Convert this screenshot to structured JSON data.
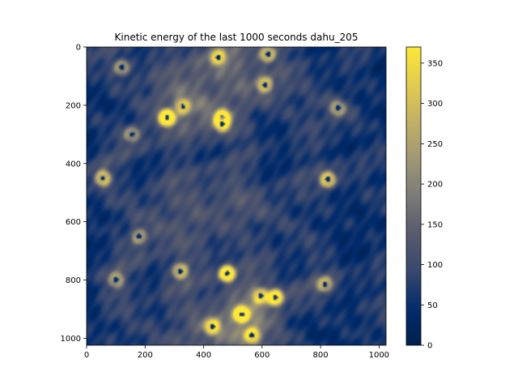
{
  "chart_data": {
    "type": "heatmap",
    "title": "Kinetic energy of the last 1000 seconds dahu_205",
    "xlabel": "",
    "ylabel": "",
    "xlim": [
      0,
      1024
    ],
    "ylim": [
      1024,
      0
    ],
    "x_ticks": [
      0,
      200,
      400,
      600,
      800,
      1000
    ],
    "y_ticks": [
      0,
      200,
      400,
      600,
      800,
      1000
    ],
    "colorbar": {
      "colormap": "cividis",
      "range": [
        0,
        370
      ],
      "ticks": [
        0,
        50,
        100,
        150,
        200,
        250,
        300,
        350
      ]
    },
    "background_level": 60,
    "band_level": 130,
    "vortices": [
      {
        "x": 275,
        "y": 243,
        "peak": 370
      },
      {
        "x": 463,
        "y": 243,
        "peak": 290
      },
      {
        "x": 463,
        "y": 265,
        "peak": 240
      },
      {
        "x": 480,
        "y": 778,
        "peak": 340
      },
      {
        "x": 645,
        "y": 860,
        "peak": 300
      },
      {
        "x": 595,
        "y": 855,
        "peak": 230
      },
      {
        "x": 530,
        "y": 918,
        "peak": 330
      },
      {
        "x": 825,
        "y": 455,
        "peak": 280
      },
      {
        "x": 55,
        "y": 450,
        "peak": 250
      },
      {
        "x": 320,
        "y": 770,
        "peak": 230
      },
      {
        "x": 815,
        "y": 815,
        "peak": 210
      },
      {
        "x": 610,
        "y": 130,
        "peak": 220
      },
      {
        "x": 430,
        "y": 960,
        "peak": 240
      },
      {
        "x": 565,
        "y": 990,
        "peak": 260
      },
      {
        "x": 620,
        "y": 25,
        "peak": 230
      },
      {
        "x": 450,
        "y": 35,
        "peak": 220
      },
      {
        "x": 120,
        "y": 70,
        "peak": 200
      },
      {
        "x": 155,
        "y": 300,
        "peak": 180
      },
      {
        "x": 100,
        "y": 800,
        "peak": 190
      },
      {
        "x": 180,
        "y": 650,
        "peak": 180
      },
      {
        "x": 330,
        "y": 205,
        "peak": 200
      },
      {
        "x": 860,
        "y": 210,
        "peak": 180
      }
    ]
  }
}
